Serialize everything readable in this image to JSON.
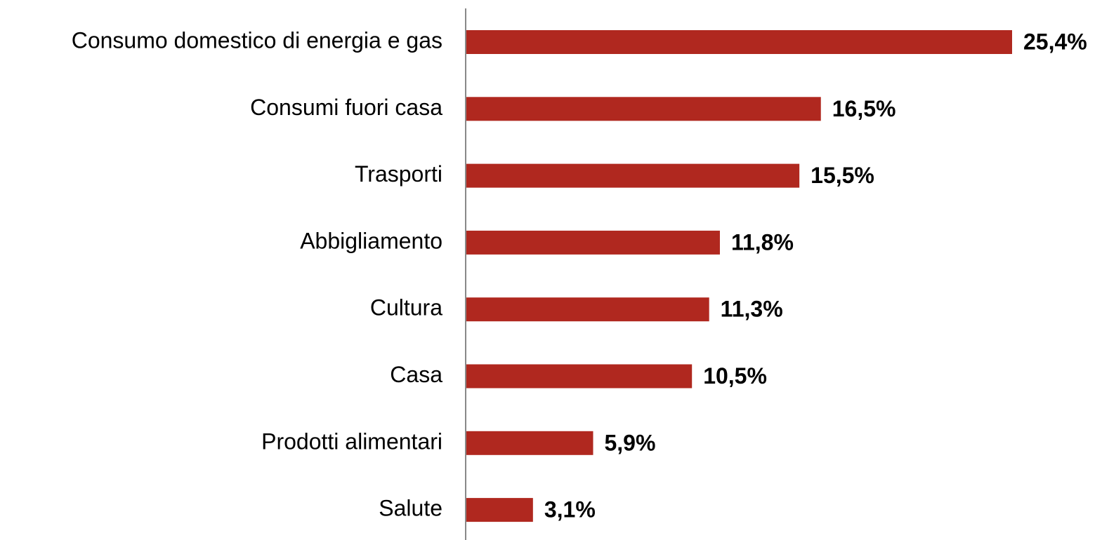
{
  "chart_data": {
    "type": "bar",
    "orientation": "horizontal",
    "categories": [
      "Consumo domestico di energia e gas",
      "Consumi fuori casa",
      "Trasporti",
      "Abbigliamento",
      "Cultura",
      "Casa",
      "Prodotti alimentari",
      "Salute"
    ],
    "values": [
      25.4,
      16.5,
      15.5,
      11.8,
      11.3,
      10.5,
      5.9,
      3.1
    ],
    "value_labels": [
      "25,4%",
      "16,5%",
      "15,5%",
      "11,8%",
      "11,3%",
      "10,5%",
      "5,9%",
      "3,1%"
    ],
    "color": "#b0281f"
  }
}
